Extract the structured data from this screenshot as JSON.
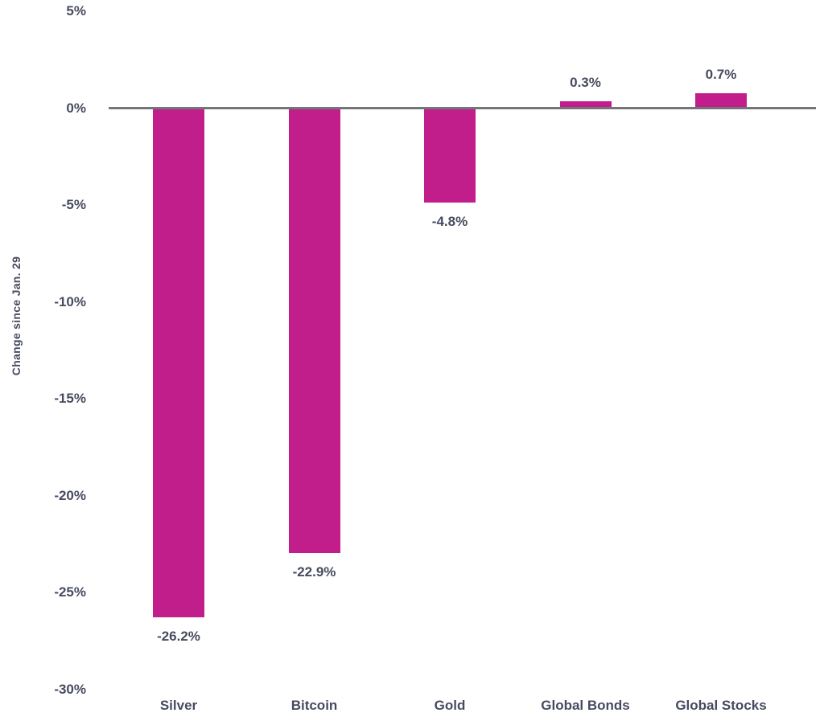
{
  "chart_data": {
    "type": "bar",
    "categories": [
      "Silver",
      "Bitcoin",
      "Gold",
      "Global Bonds",
      "Global Stocks"
    ],
    "values": [
      -26.2,
      -22.9,
      -4.8,
      0.3,
      0.7
    ],
    "value_labels": [
      "-26.2%",
      "-22.9%",
      "-4.8%",
      "0.3%",
      "0.7%"
    ],
    "title": "",
    "xlabel": "",
    "ylabel": "Change since Jan. 29",
    "ylim": [
      -30,
      5
    ],
    "yticks": [
      5,
      0,
      -5,
      -10,
      -15,
      -20,
      -25,
      -30
    ],
    "ytick_labels": [
      "5%",
      "0%",
      "-5%",
      "-10%",
      "-15%",
      "-20%",
      "-25%",
      "-30%"
    ],
    "grid": false,
    "legend": false,
    "zero_baseline": true,
    "colors": {
      "bar": "#c11e8c",
      "axis_line": "#747579",
      "text": "#474b5f"
    }
  }
}
